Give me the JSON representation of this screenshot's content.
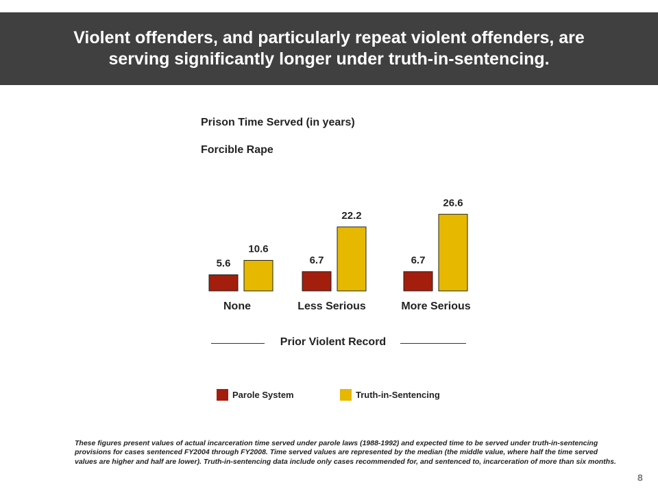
{
  "slide": {
    "title": "Violent offenders, and particularly repeat violent offenders, are\nserving significantly longer under truth-in-sentencing.",
    "page_number": "8",
    "footnote": "These figures present values of actual incarceration time served under parole laws (1988-1992) and expected time to be served under truth-in-sentencing provisions for cases sentenced FY2004 through FY2008.  Time served values are represented by the median (the middle value, where half the time served values are higher and half are lower).  Truth-in-sentencing data include only cases recommended for, and sentenced to, incarceration of more than six months."
  },
  "chart_data": {
    "type": "bar",
    "title": "Prison Time Served (in years)",
    "subtitle": "Forcible Rape",
    "xlabel": "Prior Violent Record",
    "ylabel": "",
    "categories": [
      "None",
      "Less Serious",
      "More Serious"
    ],
    "series": [
      {
        "name": "Parole System",
        "color": "#a31e0c",
        "values": [
          5.6,
          6.7,
          6.7
        ]
      },
      {
        "name": "Truth-in-Sentencing",
        "color": "#e6b800",
        "values": [
          10.6,
          22.2,
          26.6
        ]
      }
    ],
    "data_labels": true,
    "grid": false,
    "legend": "bottom"
  }
}
